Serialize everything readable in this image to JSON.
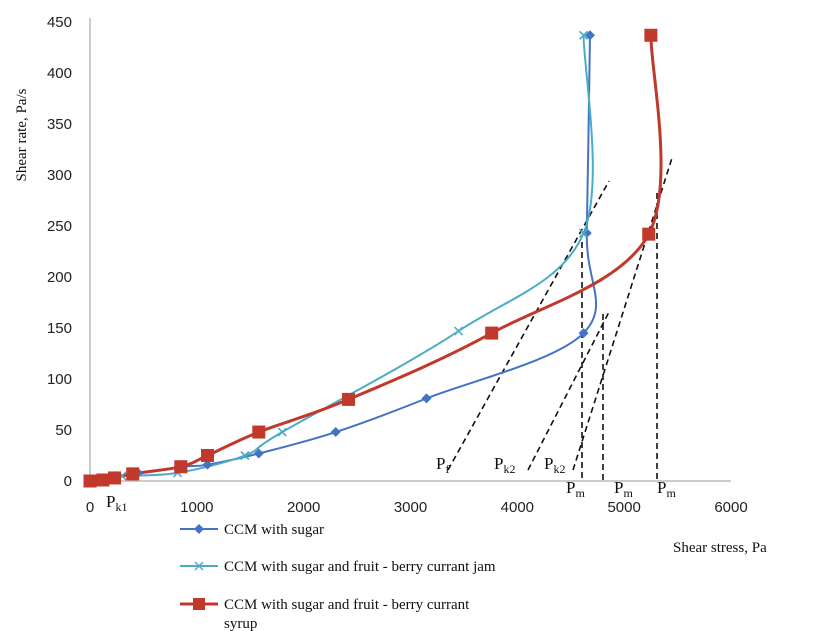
{
  "chart_data": {
    "type": "line",
    "xlabel": "Shear stress, Pa",
    "ylabel": "Shear rate, Pa/s",
    "xlim": [
      0,
      6000
    ],
    "ylim": [
      0,
      450
    ],
    "xticks": [
      0,
      1000,
      2000,
      3000,
      4000,
      5000,
      6000
    ],
    "yticks": [
      0,
      50,
      100,
      150,
      200,
      250,
      300,
      350,
      400,
      450
    ],
    "grid": false,
    "legend_position": "bottom-left",
    "series": [
      {
        "name": "CCM with sugar",
        "color": "#4472c4",
        "marker": "diamond",
        "points": [
          [
            0,
            0
          ],
          [
            100,
            2
          ],
          [
            250,
            5
          ],
          [
            450,
            8
          ],
          [
            870,
            14
          ],
          [
            1100,
            16
          ],
          [
            1580,
            27
          ],
          [
            2300,
            48
          ],
          [
            3150,
            81
          ],
          [
            4620,
            145
          ],
          [
            4650,
            243
          ],
          [
            4680,
            437
          ]
        ]
      },
      {
        "name": "CCM with sugar and fruit - berry currant jam",
        "color": "#4bacc6",
        "marker": "x",
        "points": [
          [
            0,
            0
          ],
          [
            150,
            3
          ],
          [
            300,
            5
          ],
          [
            820,
            8
          ],
          [
            1450,
            25
          ],
          [
            1800,
            48
          ],
          [
            3450,
            147
          ],
          [
            4620,
            243
          ],
          [
            4620,
            437
          ]
        ]
      },
      {
        "name": "CCM with sugar and fruit - berry currant syrup",
        "color": "#c0392b",
        "marker": "square",
        "points": [
          [
            0,
            0
          ],
          [
            120,
            1
          ],
          [
            230,
            3
          ],
          [
            400,
            7
          ],
          [
            850,
            14
          ],
          [
            1100,
            25
          ],
          [
            1580,
            48
          ],
          [
            2420,
            80
          ],
          [
            3760,
            145
          ],
          [
            5230,
            242
          ],
          [
            5250,
            437
          ]
        ]
      }
    ],
    "annotations": {
      "pf": "P",
      "pf_sub": "f",
      "pk1": "P",
      "pk1_sub": "k1",
      "pk2": "P",
      "pk2_sub": "k2",
      "pk2b": "P",
      "pk2b_sub": "k2",
      "pm1": "P",
      "pm1_sub": "m",
      "pm2": "P",
      "pm2_sub": "m",
      "pm3": "P",
      "pm3_sub": "m"
    }
  }
}
